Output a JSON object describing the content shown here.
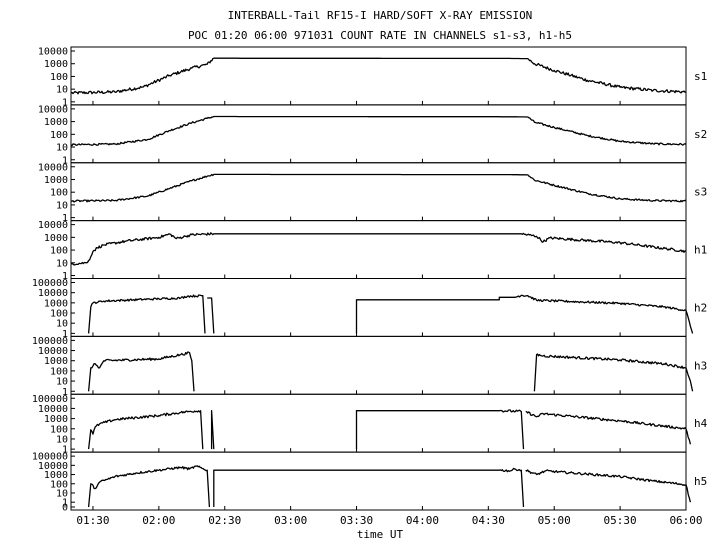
{
  "chart_data": {
    "type": "line",
    "title": "INTERBALL-Tail RF15-I HARD/SOFT X-RAY EMISSION",
    "subtitle": "POC 01:20 06:00 971031  COUNT RATE IN CHANNELS s1-s3, h1-h5",
    "xlabel": "time UT",
    "x_range": [
      "01:20",
      "06:00"
    ],
    "x_ticks": [
      "01:30",
      "02:00",
      "02:30",
      "03:00",
      "03:30",
      "04:00",
      "04:30",
      "05:00",
      "05:30",
      "06:00"
    ],
    "y_scale": "log",
    "grid": false,
    "panels": [
      {
        "name": "s1",
        "y_ticks": [
          "1",
          "10",
          "100",
          "1000",
          "10000"
        ],
        "y_range": [
          1,
          10000
        ],
        "noise": 0.12,
        "segments": [
          [
            [
              "01:20",
              5
            ],
            [
              "01:40",
              6
            ],
            [
              "01:53",
              15
            ],
            [
              "02:05",
              120
            ],
            [
              "02:15",
              450
            ],
            [
              "02:22",
              900
            ],
            [
              "02:25",
              2700
            ],
            [
              "04:40",
              2600
            ],
            [
              "04:48",
              2500
            ],
            [
              "04:51",
              1000
            ],
            [
              "05:00",
              300
            ],
            [
              "05:15",
              50
            ],
            [
              "05:30",
              14
            ],
            [
              "05:45",
              8
            ],
            [
              "06:00",
              6
            ]
          ]
        ]
      },
      {
        "name": "s2",
        "y_ticks": [
          "1",
          "10",
          "100",
          "1000",
          "10000"
        ],
        "y_range": [
          1,
          10000
        ],
        "noise": 0.07,
        "segments": [
          [
            [
              "01:20",
              15
            ],
            [
              "01:40",
              17
            ],
            [
              "01:55",
              40
            ],
            [
              "02:05",
              200
            ],
            [
              "02:15",
              800
            ],
            [
              "02:22",
              1800
            ],
            [
              "02:25",
              2500
            ],
            [
              "04:40",
              2400
            ],
            [
              "04:48",
              2300
            ],
            [
              "04:51",
              900
            ],
            [
              "05:00",
              350
            ],
            [
              "05:15",
              80
            ],
            [
              "05:30",
              28
            ],
            [
              "05:45",
              18
            ],
            [
              "06:00",
              16
            ]
          ]
        ]
      },
      {
        "name": "s3",
        "y_ticks": [
          "1",
          "10",
          "100",
          "1000",
          "10000"
        ],
        "y_range": [
          1,
          10000
        ],
        "noise": 0.07,
        "segments": [
          [
            [
              "01:20",
              20
            ],
            [
              "01:40",
              22
            ],
            [
              "01:55",
              50
            ],
            [
              "02:05",
              200
            ],
            [
              "02:15",
              800
            ],
            [
              "02:22",
              1800
            ],
            [
              "02:25",
              2500
            ],
            [
              "04:40",
              2400
            ],
            [
              "04:48",
              2300
            ],
            [
              "04:51",
              900
            ],
            [
              "05:00",
              350
            ],
            [
              "05:15",
              80
            ],
            [
              "05:30",
              30
            ],
            [
              "05:45",
              22
            ],
            [
              "06:00",
              20
            ]
          ]
        ]
      },
      {
        "name": "h1",
        "y_ticks": [
          "1",
          "10",
          "100",
          "1000",
          "10000"
        ],
        "y_range": [
          1,
          10000
        ],
        "noise": 0.1,
        "segments": [
          [
            [
              "01:20",
              8
            ],
            [
              "01:27",
              10
            ],
            [
              "01:28",
              15
            ],
            [
              "01:29",
              30
            ],
            [
              "01:30",
              80
            ],
            [
              "01:32",
              150
            ],
            [
              "01:35",
              250
            ],
            [
              "01:45",
              500
            ],
            [
              "02:00",
              1000
            ],
            [
              "02:05",
              1800
            ],
            [
              "02:08",
              800
            ],
            [
              "02:12",
              1200
            ],
            [
              "02:15",
              1600
            ],
            [
              "02:25",
              1900
            ],
            [
              "04:45",
              1900
            ],
            [
              "04:52",
              1200
            ],
            [
              "04:55",
              450
            ],
            [
              "04:58",
              900
            ],
            [
              "05:30",
              380
            ],
            [
              "06:00",
              80
            ]
          ]
        ]
      },
      {
        "name": "h2",
        "y_ticks": [
          "1",
          "10",
          "100",
          "1000",
          "10000",
          "100000"
        ],
        "y_range": [
          1,
          100000
        ],
        "noise": 0.1,
        "segments": [
          [
            [
              "01:28",
              1
            ],
            [
              "01:29",
              400
            ],
            [
              "01:30",
              1000
            ],
            [
              "01:35",
              1500
            ],
            [
              "02:00",
              2500
            ],
            [
              "02:10",
              3000
            ],
            [
              "02:13",
              4500
            ],
            [
              "02:20",
              5000
            ],
            [
              "02:21",
              1
            ]
          ],
          [
            [
              "02:22",
              3000
            ],
            [
              "02:24",
              3000
            ],
            [
              "02:25",
              1
            ]
          ],
          [
            [
              "03:30",
              1
            ],
            [
              "03:30",
              2000
            ],
            [
              "04:35",
              2000
            ],
            [
              "04:35",
              3500
            ],
            [
              "04:42",
              3500
            ],
            [
              "04:45",
              5500
            ],
            [
              "04:48",
              5000
            ],
            [
              "04:52",
              1800
            ],
            [
              "05:30",
              900
            ],
            [
              "05:50",
              400
            ],
            [
              "06:00",
              180
            ],
            [
              "06:02",
              5
            ],
            [
              "06:03",
              1
            ]
          ]
        ]
      },
      {
        "name": "h3",
        "y_ticks": [
          "1",
          "10",
          "100",
          "1000",
          "10000",
          "100000"
        ],
        "y_range": [
          1,
          100000
        ],
        "noise": 0.12,
        "segments": [
          [
            [
              "01:28",
              1
            ],
            [
              "01:29",
              200
            ],
            [
              "01:31",
              500
            ],
            [
              "01:33",
              200
            ],
            [
              "01:35",
              1000
            ],
            [
              "02:00",
              1500
            ],
            [
              "02:10",
              4000
            ],
            [
              "02:14",
              6000
            ],
            [
              "02:15",
              1000
            ],
            [
              "02:16",
              1
            ]
          ],
          [
            [
              "04:51",
              1
            ],
            [
              "04:52",
              4000
            ],
            [
              "04:55",
              3000
            ],
            [
              "05:30",
              1200
            ],
            [
              "05:50",
              500
            ],
            [
              "06:00",
              200
            ],
            [
              "06:02",
              10
            ],
            [
              "06:03",
              1
            ]
          ]
        ]
      },
      {
        "name": "h4",
        "y_ticks": [
          "1",
          "10",
          "100",
          "1000",
          "10000",
          "100000"
        ],
        "y_range": [
          1,
          100000
        ],
        "noise": 0.12,
        "segments": [
          [
            [
              "01:28",
              1
            ],
            [
              "01:29",
              80
            ],
            [
              "01:30",
              30
            ],
            [
              "01:31",
              150
            ],
            [
              "01:33",
              300
            ],
            [
              "01:40",
              800
            ],
            [
              "02:00",
              2000
            ],
            [
              "02:10",
              4000
            ],
            [
              "02:14",
              5000
            ],
            [
              "02:19",
              6000
            ],
            [
              "02:20",
              1
            ]
          ],
          [
            [
              "02:24",
              1
            ],
            [
              "02:24",
              6000
            ],
            [
              "02:25",
              1
            ]
          ],
          [
            [
              "03:30",
              1
            ],
            [
              "03:30",
              6000
            ],
            [
              "04:35",
              6000
            ],
            [
              "04:45",
              5000
            ],
            [
              "04:46",
              1
            ]
          ],
          [
            [
              "04:47",
              5000
            ],
            [
              "04:52",
              1500
            ],
            [
              "04:55",
              3000
            ],
            [
              "05:30",
              600
            ],
            [
              "06:00",
              100
            ],
            [
              "06:02",
              3
            ]
          ]
        ]
      },
      {
        "name": "h5",
        "y_ticks": [
          "0",
          "1",
          "10",
          "100",
          "1000",
          "10000",
          "100000"
        ],
        "y_range": [
          0.3,
          100000
        ],
        "noise": 0.12,
        "segments": [
          [
            [
              "01:28",
              0.3
            ],
            [
              "01:29",
              100
            ],
            [
              "01:31",
              30
            ],
            [
              "01:33",
              150
            ],
            [
              "01:40",
              600
            ],
            [
              "01:50",
              1500
            ],
            [
              "02:00",
              3000
            ],
            [
              "02:10",
              6000
            ],
            [
              "02:14",
              4000
            ],
            [
              "02:17",
              8000
            ],
            [
              "02:22",
              3000
            ],
            [
              "02:23",
              0.3
            ]
          ],
          [
            [
              "02:25",
              0.3
            ],
            [
              "02:25",
              3000
            ],
            [
              "04:35",
              3000
            ],
            [
              "04:40",
              2500
            ],
            [
              "04:42",
              4000
            ],
            [
              "04:45",
              3000
            ],
            [
              "04:46",
              0.3
            ]
          ],
          [
            [
              "04:47",
              3000
            ],
            [
              "04:52",
              1000
            ],
            [
              "04:56",
              2500
            ],
            [
              "05:30",
              600
            ],
            [
              "05:45",
              200
            ],
            [
              "06:00",
              80
            ],
            [
              "06:02",
              1
            ]
          ]
        ]
      }
    ]
  }
}
